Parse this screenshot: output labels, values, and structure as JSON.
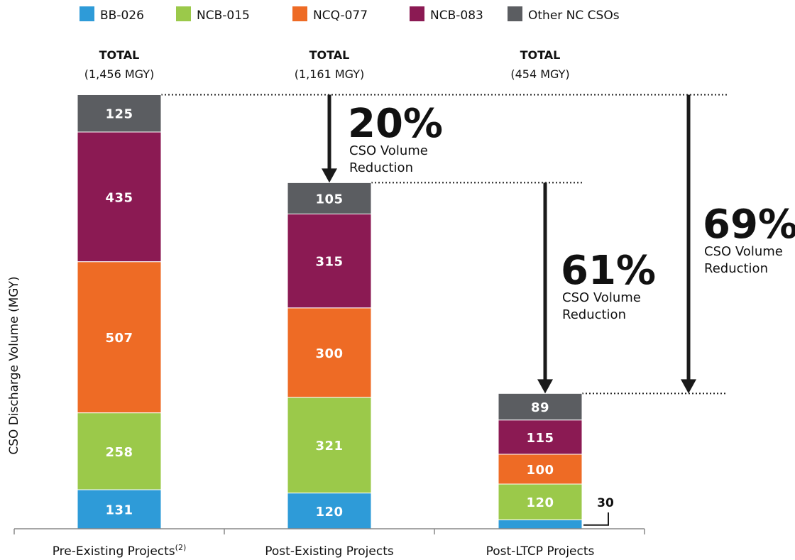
{
  "chart_data": {
    "type": "bar",
    "stacked": true,
    "ylabel": "CSO Discharge Volume (MGY)",
    "categories": [
      "Pre-Existing Projects",
      "Post-Existing Projects",
      "Post-LTCP Projects"
    ],
    "category_superscripts": [
      "(2)",
      "",
      ""
    ],
    "series": [
      {
        "name": "BB-026",
        "values": [
          131,
          120,
          30
        ],
        "color": "#2e9bd8"
      },
      {
        "name": "NCB-015",
        "values": [
          258,
          321,
          120
        ],
        "color": "#9bc94a"
      },
      {
        "name": "NCQ-077",
        "values": [
          507,
          300,
          100
        ],
        "color": "#ee6b25"
      },
      {
        "name": "NCB-083",
        "values": [
          435,
          315,
          115
        ],
        "color": "#8b1a53"
      },
      {
        "name": "Other NC CSOs",
        "values": [
          125,
          105,
          89
        ],
        "color": "#5b5d61"
      }
    ],
    "totals": [
      {
        "heading": "TOTAL",
        "value": "(1,456 MGY)"
      },
      {
        "heading": "TOTAL",
        "value": "(1,161 MGY)"
      },
      {
        "heading": "TOTAL",
        "value": "(454 MGY)"
      }
    ],
    "annotations": [
      {
        "percent": "20%",
        "line1": "CSO Volume",
        "line2": "Reduction",
        "from": 1456,
        "to": 1161
      },
      {
        "percent": "61%",
        "line1": "CSO Volume",
        "line2": "Reduction",
        "from": 1161,
        "to": 454
      },
      {
        "percent": "69%",
        "line1": "CSO Volume",
        "line2": "Reduction",
        "from": 1456,
        "to": 454
      }
    ],
    "small_segment_callout": "30",
    "legend_position": "top",
    "grid": false
  }
}
